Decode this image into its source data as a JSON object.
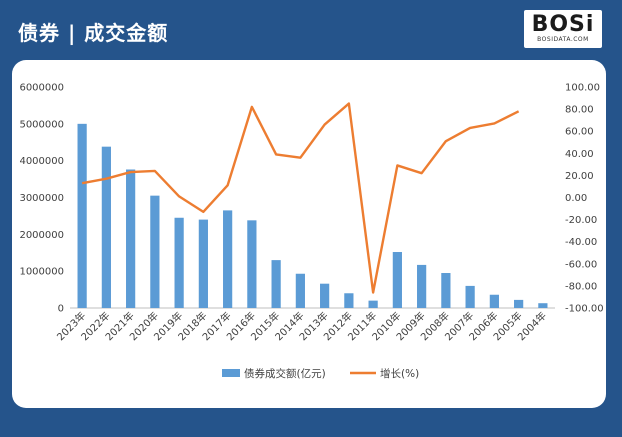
{
  "header": {
    "title": "债券 | 成交金额",
    "logo_text": "BOSi",
    "logo_subtext": "BOSIDATA.COM"
  },
  "colors": {
    "frame": "#25548b",
    "bar": "#5b9bd5",
    "line": "#ed7d31",
    "axis_text": "#404040"
  },
  "chart_data": {
    "type": "bar",
    "categories": [
      "2023年",
      "2022年",
      "2021年",
      "2020年",
      "2019年",
      "2018年",
      "2017年",
      "2016年",
      "2015年",
      "2014年",
      "2013年",
      "2012年",
      "2011年",
      "2010年",
      "2009年",
      "2008年",
      "2007年",
      "2006年",
      "2005年",
      "2004年"
    ],
    "series": [
      {
        "name": "债券成交额(亿元)",
        "type": "bar",
        "axis": "left",
        "values": [
          5000000,
          4380000,
          3760000,
          3050000,
          2450000,
          2400000,
          2650000,
          2380000,
          1300000,
          930000,
          660000,
          400000,
          200000,
          1520000,
          1170000,
          950000,
          600000,
          360000,
          220000,
          130000
        ]
      },
      {
        "name": "增长(%)",
        "type": "line",
        "axis": "right",
        "values": [
          13,
          17,
          23,
          24,
          1,
          -13,
          11,
          82,
          39,
          36,
          66,
          85,
          -86,
          29,
          22,
          51,
          63,
          67,
          78,
          null
        ]
      }
    ],
    "y_left": {
      "min": 0,
      "max": 6000000,
      "ticks": [
        0,
        1000000,
        2000000,
        3000000,
        4000000,
        5000000,
        6000000
      ]
    },
    "y_right": {
      "min": -100,
      "max": 100,
      "ticks": [
        "100.00",
        "80.00",
        "60.00",
        "40.00",
        "20.00",
        "0.00",
        "-20.00",
        "-40.00",
        "-60.00",
        "-80.00",
        "-100.00"
      ]
    },
    "legend_position": "bottom",
    "grid": false
  }
}
